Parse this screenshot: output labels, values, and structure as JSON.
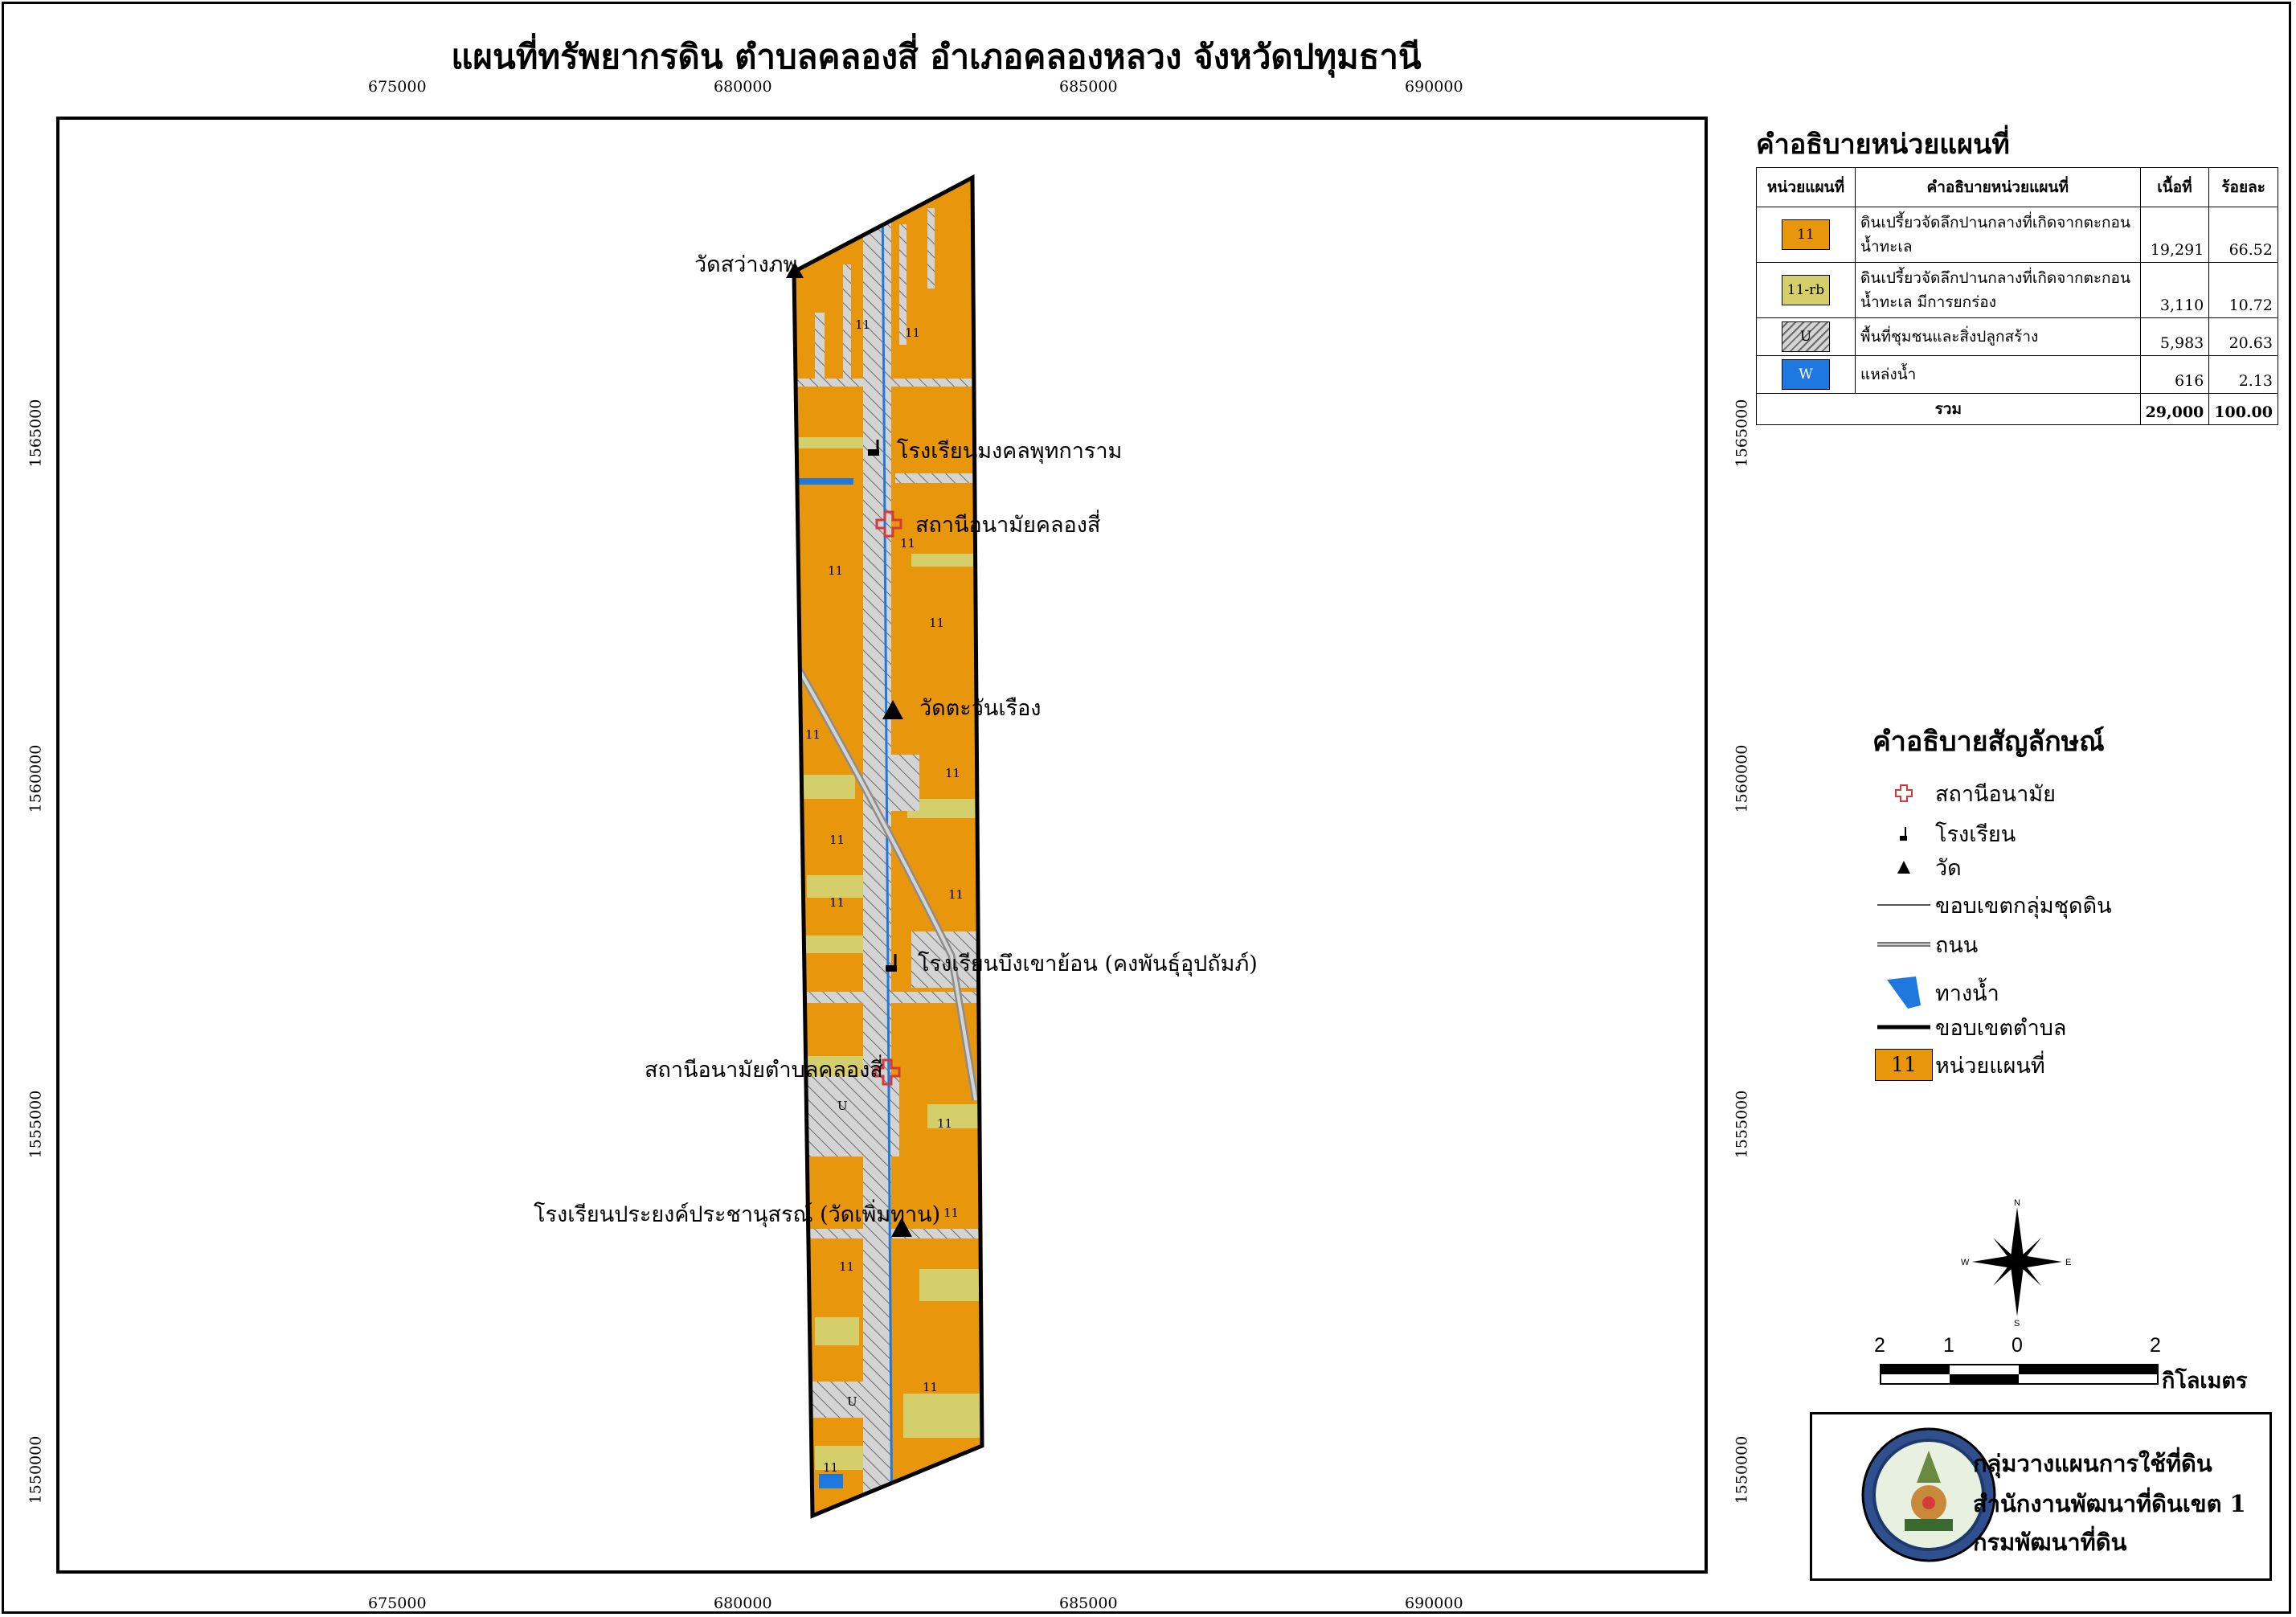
{
  "title": "แผนที่ทรัพยากรดิน ตำบลคลองสี่ อำเภอคลองหลวง จังหวัดปทุมธานี",
  "grid": {
    "x_ticks": [
      "675000",
      "680000",
      "685000",
      "690000"
    ],
    "y_ticks": [
      "1565000",
      "1560000",
      "1555000",
      "1550000"
    ]
  },
  "places": {
    "wat_sawang": "วัดสว่างภพ",
    "school_mongkol": "โรงเรียนมงคลพุทการาม",
    "health_station_1": "สถานีอนามัยคลองสี่",
    "wat_tawan": "วัดตะวันเรือง",
    "school_bueng": "โรงเรียนบึงเขาย้อน (คงพันธุ์อุปถัมภ์)",
    "health_station_2": "สถานีอนามัยตำบลคลองสี่",
    "school_prasong": "โรงเรียนประยงค์ประชานุสรณ์ (วัดเพิ่มทาน)"
  },
  "unit_labels": [
    "11",
    "U"
  ],
  "legend_units": {
    "title": "คำอธิบายหน่วยแผนที่",
    "headers": [
      "หน่วยแผนที่",
      "คำอธิบายหน่วยแผนที่",
      "เนื้อที่",
      "ร้อยละ"
    ],
    "rows": [
      {
        "code": "11",
        "desc_1": "ดินเปรี้ยวจัดลึกปานกลางที่เกิดจากตะกอน",
        "desc_2": "น้ำทะเล",
        "area": "19,291",
        "percent": "66.52",
        "color": "#E8960C"
      },
      {
        "code": "11-rb",
        "desc_1": "ดินเปรี้ยวจัดลึกปานกลางที่เกิดจากตะกอน",
        "desc_2": "น้ำทะเล มีการยกร่อง",
        "area": "3,110",
        "percent": "10.72",
        "color": "#D4CF6A"
      },
      {
        "code": "U",
        "desc_1": "พื้นที่ชุมชนและสิ่งปลูกสร้าง",
        "desc_2": "",
        "area": "5,983",
        "percent": "20.63",
        "color": "#D0D0D0"
      },
      {
        "code": "W",
        "desc_1": "แหล่งน้ำ",
        "desc_2": "",
        "area": "616",
        "percent": "2.13",
        "color": "#1F78E0"
      }
    ],
    "total_label": "รวม",
    "total_area": "29,000",
    "total_percent": "100.00"
  },
  "legend_symbols": {
    "title": "คำอธิบายสัญลักษณ์",
    "items": [
      {
        "icon": "health-station-cross-icon",
        "label": "สถานีอนามัย"
      },
      {
        "icon": "school-flag-icon",
        "label": "โรงเรียน"
      },
      {
        "icon": "temple-triangle-icon",
        "label": "วัด"
      },
      {
        "icon": "soil-boundary-line-icon",
        "label": "ขอบเขตกลุ่มชุดดิน"
      },
      {
        "icon": "road-line-icon",
        "label": "ถนน"
      },
      {
        "icon": "waterway-icon",
        "label": "ทางน้ำ"
      },
      {
        "icon": "subdistrict-boundary-icon",
        "label": "ขอบเขตตำบล"
      },
      {
        "icon": "map-unit-swatch-icon",
        "swatch_text": "11",
        "label": "หน่วยแผนที่"
      }
    ]
  },
  "north_arrow": {
    "n": "N",
    "s": "S",
    "e": "E",
    "w": "W"
  },
  "scale_bar": {
    "labels": [
      "2",
      "1",
      "0",
      "2"
    ],
    "unit": "กิโลเมตร"
  },
  "agency": {
    "line_1": "กลุ่มวางแผนการใช้ที่ดิน",
    "line_2": "สำนักงานพัฒนาที่ดินเขต 1",
    "line_3": "กรมพัฒนาที่ดิน"
  }
}
